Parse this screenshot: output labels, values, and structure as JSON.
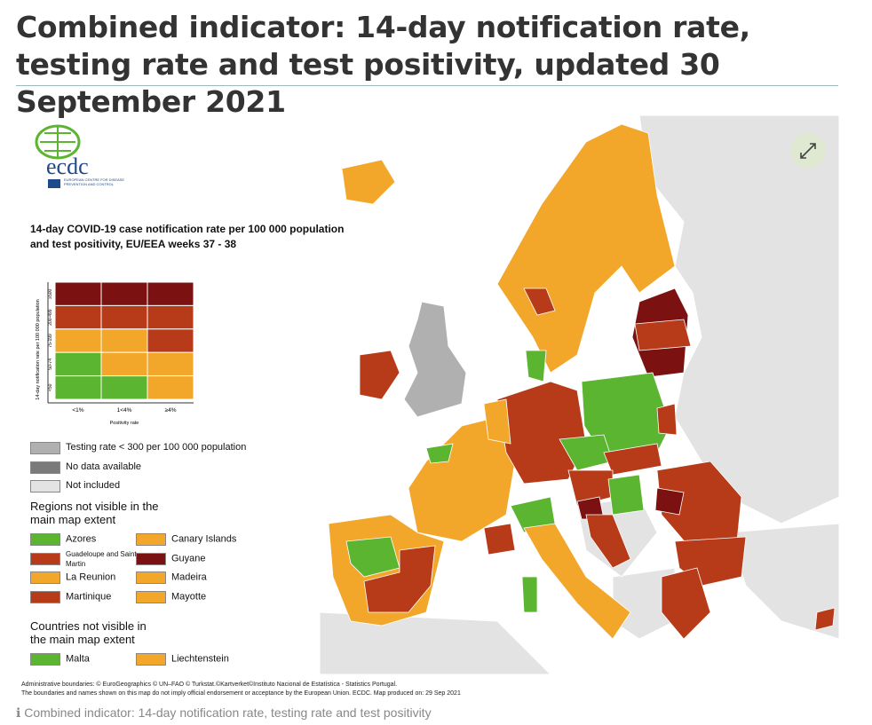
{
  "header": {
    "title": "Combined indicator: 14-day notification rate, testing rate and test positivity, updated 30 September 2021"
  },
  "logo": {
    "name": "ecdc",
    "subtitle": "EUROPEAN CENTRE FOR DISEASE PREVENTION AND CONTROL"
  },
  "legend": {
    "title": "14-day COVID-19 case notification rate per 100 000 population and test positivity, EU/EEA weeks 37 - 38",
    "y_label": "14-day notification rate per 100 000 population",
    "rows": [
      "≥500",
      "200-499",
      "75-199",
      "50-74",
      "<50"
    ],
    "columns": [
      "<1%",
      "1<4%",
      "≥4%"
    ],
    "x_label": "Positivity rate",
    "grid_colors": [
      [
        "#7b1111",
        "#7b1111",
        "#7b1111"
      ],
      [
        "#b73a19",
        "#b73a19",
        "#b73a19"
      ],
      [
        "#f2a72a",
        "#f2a72a",
        "#b73a19"
      ],
      [
        "#5cb531",
        "#f2a72a",
        "#f2a72a"
      ],
      [
        "#5cb531",
        "#5cb531",
        "#f2a72a"
      ]
    ],
    "items": [
      {
        "label": "Testing rate < 300 per 100 000 population",
        "color": "#b0b0b0"
      },
      {
        "label": "No data available",
        "color": "#7a7a7a"
      },
      {
        "label": "Not included",
        "color": "#e3e3e3"
      }
    ],
    "regions_title": "Regions not visible in the main map extent",
    "regions": [
      {
        "label": "Azores",
        "color": "#5cb531"
      },
      {
        "label": "Canary Islands",
        "color": "#f2a72a"
      },
      {
        "label": "Guadeloupe and Saint Martin",
        "color": "#b73a19"
      },
      {
        "label": "Guyane",
        "color": "#7b1111"
      },
      {
        "label": "La Reunion",
        "color": "#f2a72a"
      },
      {
        "label": "Madeira",
        "color": "#f2a72a"
      },
      {
        "label": "Martinique",
        "color": "#b73a19"
      },
      {
        "label": "Mayotte",
        "color": "#f2a72a"
      }
    ],
    "countries_title": "Countries not visible in the main map extent",
    "countries": [
      {
        "label": "Malta",
        "color": "#5cb531"
      },
      {
        "label": "Liechtenstein",
        "color": "#f2a72a"
      }
    ]
  },
  "footer": {
    "lines": [
      "Administrative boundaries: © EuroGeographics © UN–FAO © Turkstat.©Kartverket©Instituto Nacional de Estatística - Statistics Portugal.",
      "The boundaries and names shown on this map do not imply official endorsement or acceptance by the European Union. ECDC. Map produced on: 29 Sep 2021"
    ]
  },
  "caption": {
    "icon": "ℹ",
    "text": "Combined indicator: 14-day notification rate, testing rate and test positivity"
  }
}
